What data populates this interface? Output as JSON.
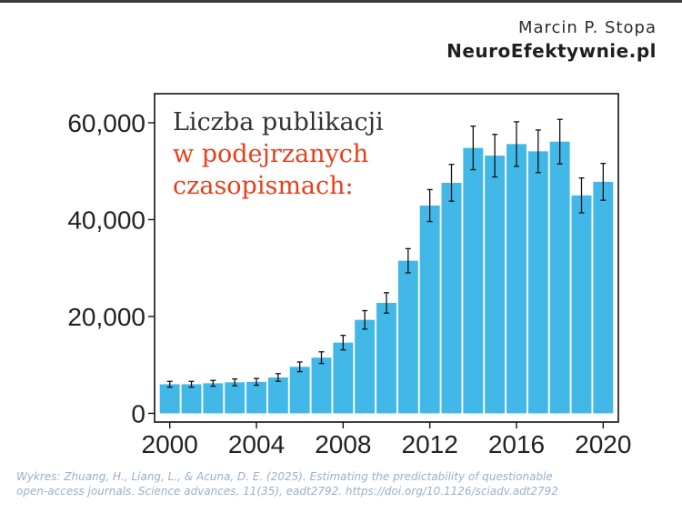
{
  "header": {
    "author": "Marcin P. Stopa",
    "site": "NeuroEfektywnie.pl"
  },
  "caption": {
    "line1": "Wykres: Zhuang, H., Liang, L., & Acuna, D. E. (2025). Estimating the predictability of questionable",
    "line2": "open-access journals. Science advances, 11(35), eadt2792. https://doi.org/10.1126/sciadv.adt2792"
  },
  "colors": {
    "bar": "#42b8e8",
    "title_dark": "#333333",
    "title_accent": "#e8401c",
    "error_bar": "#111111",
    "caption": "#9ab0c6"
  },
  "chart_data": {
    "type": "bar",
    "title_lines": [
      {
        "text": "Liczba publikacji",
        "color": "#333333"
      },
      {
        "text": "w podejrzanych",
        "color": "#e8401c"
      },
      {
        "text": "czasopismach:",
        "color": "#e8401c"
      }
    ],
    "xlabel": "",
    "ylabel": "",
    "x": [
      2000,
      2001,
      2002,
      2003,
      2004,
      2005,
      2006,
      2007,
      2008,
      2009,
      2010,
      2011,
      2012,
      2013,
      2014,
      2015,
      2016,
      2017,
      2018,
      2019,
      2020
    ],
    "values": [
      6000,
      6000,
      6200,
      6400,
      6500,
      7400,
      9600,
      11500,
      14600,
      19300,
      22800,
      31500,
      42900,
      47600,
      54800,
      53200,
      55600,
      54100,
      56100,
      45000,
      47800
    ],
    "error": [
      600,
      600,
      600,
      700,
      700,
      800,
      1000,
      1200,
      1500,
      1900,
      2100,
      2500,
      3300,
      3800,
      4500,
      4400,
      4600,
      4400,
      4600,
      3600,
      3800
    ],
    "x_ticks": [
      2000,
      2004,
      2008,
      2012,
      2016,
      2020
    ],
    "y_ticks": [
      0,
      20000,
      40000,
      60000
    ],
    "y_tick_labels": [
      "0",
      "20,000",
      "40,000",
      "60,000"
    ],
    "xlim": [
      1999.3,
      2020.7
    ],
    "ylim": [
      -1800,
      66000
    ],
    "grid": false,
    "legend": "none"
  }
}
